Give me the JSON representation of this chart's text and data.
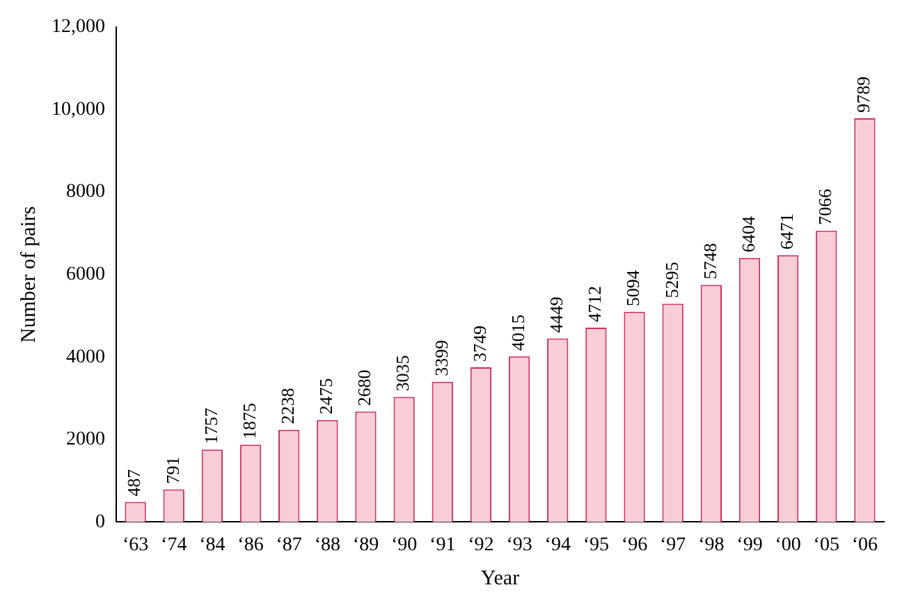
{
  "chart_data": {
    "type": "bar",
    "xlabel": "Year",
    "ylabel": "Number of pairs",
    "categories": [
      "‘63",
      "‘74",
      "‘84",
      "‘86",
      "‘87",
      "‘88",
      "‘89",
      "‘90",
      "‘91",
      "‘92",
      "‘93",
      "‘94",
      "‘95",
      "‘96",
      "‘97",
      "‘98",
      "‘99",
      "‘00",
      "‘05",
      "‘06"
    ],
    "values": [
      487,
      791,
      1757,
      1875,
      2238,
      2475,
      2680,
      3035,
      3399,
      3749,
      4015,
      4449,
      4712,
      5094,
      5295,
      5748,
      6404,
      6471,
      7066,
      9789
    ],
    "color": "#f8cdd6",
    "ylim": [
      0,
      12000
    ],
    "yticks": [
      0,
      2000,
      4000,
      6000,
      8000,
      {
        "value": 10000,
        "label": "10,000"
      },
      {
        "value": 12000,
        "label": "12,000"
      }
    ],
    "grid": false,
    "legend": false,
    "data_labels": true
  }
}
